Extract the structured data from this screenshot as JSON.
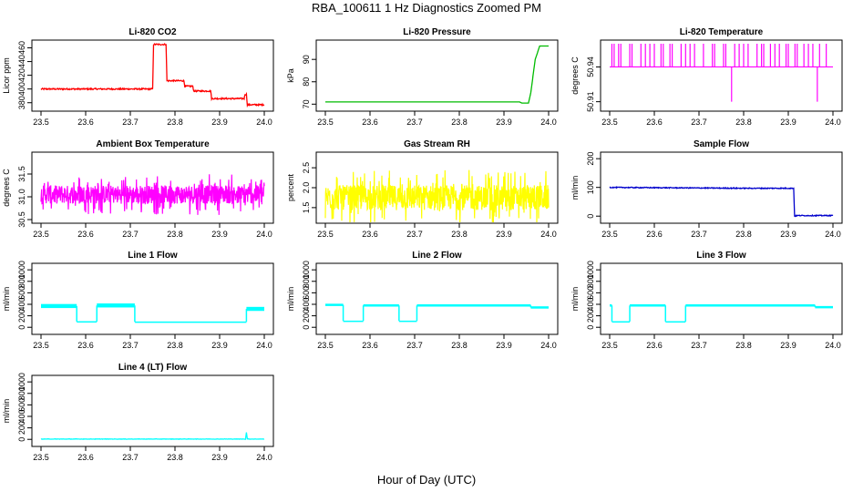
{
  "title": "RBA_100611  1 Hz Diagnostics Zoomed PM",
  "x_axis_label": "Hour of Day (UTC)",
  "chart_data": [
    {
      "type": "line",
      "title": "Li-820 CO2",
      "ylabel": "Licor ppm",
      "color": "#ff0000",
      "xlim": [
        23.5,
        24.0
      ],
      "ylim": [
        373,
        466
      ],
      "xticks": [
        "23.5",
        "23.6",
        "23.7",
        "23.8",
        "23.9",
        "24.0"
      ],
      "yticks": [
        380,
        400,
        420,
        440,
        460
      ],
      "x": [
        23.5,
        23.6,
        23.7,
        23.75,
        23.752,
        23.78,
        23.782,
        23.82,
        23.822,
        23.84,
        23.842,
        23.88,
        23.882,
        23.955,
        23.957,
        23.96,
        23.962,
        24.0
      ],
      "y": [
        400,
        400,
        400,
        400,
        465,
        465,
        412,
        412,
        404,
        404,
        397,
        397,
        386,
        386,
        392,
        392,
        377,
        377
      ],
      "noise": 1
    },
    {
      "type": "line",
      "title": "Li-820 Pressure",
      "ylabel": "kPa",
      "color": "#00bb00",
      "xlim": [
        23.5,
        24.0
      ],
      "ylim": [
        68.5,
        97
      ],
      "xticks": [
        "23.5",
        "23.6",
        "23.7",
        "23.8",
        "23.9",
        "24.0"
      ],
      "yticks": [
        70,
        80,
        90
      ],
      "x": [
        23.5,
        23.6,
        23.7,
        23.8,
        23.9,
        23.935,
        23.94,
        23.955,
        23.96,
        23.97,
        23.98,
        24.0
      ],
      "y": [
        71,
        71,
        71,
        71,
        71,
        71,
        70.5,
        70.5,
        75,
        90,
        96,
        96
      ],
      "noise": 0
    },
    {
      "type": "spikes",
      "title": "Li-820 Temperature",
      "ylabel": "degrees C",
      "color": "#ff00ff",
      "xlim": [
        23.5,
        24.0
      ],
      "ylim": [
        50.905,
        50.96
      ],
      "xticks": [
        "23.5",
        "23.6",
        "23.7",
        "23.8",
        "23.9",
        "24.0"
      ],
      "yticks": [
        "50.91",
        "50.94"
      ],
      "baseline": 50.94,
      "spike_top": 50.96,
      "spikes_up": [
        23.505,
        23.51,
        23.52,
        23.525,
        23.545,
        23.55,
        23.57,
        23.58,
        23.59,
        23.6,
        23.615,
        23.62,
        23.635,
        23.64,
        23.66,
        23.67,
        23.68,
        23.69,
        23.71,
        23.73,
        23.735,
        23.755,
        23.76,
        23.78,
        23.79,
        23.8,
        23.81,
        23.83,
        23.84,
        23.845,
        23.86,
        23.87,
        23.88,
        23.895,
        23.9,
        23.915,
        23.92,
        23.935,
        23.945,
        23.955,
        23.97,
        23.985
      ],
      "spikes_down": [
        {
          "x": 23.773,
          "y": 50.91
        },
        {
          "x": 23.965,
          "y": 50.91
        }
      ]
    },
    {
      "type": "noise",
      "title": "Ambient Box Temperature",
      "ylabel": "degrees C",
      "color": "#ff00ff",
      "xlim": [
        23.5,
        24.0
      ],
      "ylim": [
        30.5,
        31.9
      ],
      "xticks": [
        "23.5",
        "23.6",
        "23.7",
        "23.8",
        "23.9",
        "24.0"
      ],
      "yticks": [
        "30.5",
        "31.0",
        "31.5"
      ],
      "center": 31.05,
      "amplitude": 0.45
    },
    {
      "type": "noise",
      "title": "Gas Stream RH",
      "ylabel": "percent",
      "color": "#ffff00",
      "xlim": [
        23.5,
        24.0
      ],
      "ylim": [
        1.2,
        2.8
      ],
      "xticks": [
        "23.5",
        "23.6",
        "23.7",
        "23.8",
        "23.9",
        "24.0"
      ],
      "yticks": [
        "1.5",
        "2.0",
        "2.5"
      ],
      "center": 1.75,
      "amplitude": 0.7
    },
    {
      "type": "line",
      "title": "Sample Flow",
      "ylabel": "ml/min",
      "color": "#0000cc",
      "xlim": [
        23.5,
        24.0
      ],
      "ylim": [
        -12,
        210
      ],
      "xticks": [
        "23.5",
        "23.6",
        "23.7",
        "23.8",
        "23.9",
        "24.0"
      ],
      "yticks": [
        0,
        100,
        200
      ],
      "x": [
        23.5,
        23.6,
        23.7,
        23.8,
        23.9,
        23.912,
        23.914,
        23.92,
        24.0
      ],
      "y": [
        100,
        99,
        98,
        97,
        97,
        97,
        0,
        2,
        2
      ],
      "noise": 1.5
    },
    {
      "type": "band",
      "title": "Line 1 Flow",
      "ylabel": "ml/min",
      "color": "#00ffff",
      "xlim": [
        23.5,
        24.0
      ],
      "ylim": [
        -60,
        1050
      ],
      "xticks": [
        "23.5",
        "23.6",
        "23.7",
        "23.8",
        "23.9",
        "24.0"
      ],
      "yticks": [
        0,
        200,
        400,
        600,
        800,
        1000
      ],
      "segments": [
        [
          23.5,
          23.58,
          370
        ],
        [
          23.58,
          23.625,
          100
        ],
        [
          23.625,
          23.71,
          380
        ],
        [
          23.71,
          23.96,
          95
        ],
        [
          23.96,
          24.0,
          320
        ]
      ],
      "band": 70
    },
    {
      "type": "band",
      "title": "Line 2 Flow",
      "ylabel": "ml/min",
      "color": "#00ffff",
      "xlim": [
        23.5,
        24.0
      ],
      "ylim": [
        -60,
        1050
      ],
      "xticks": [
        "23.5",
        "23.6",
        "23.7",
        "23.8",
        "23.9",
        "24.0"
      ],
      "yticks": [
        0,
        200,
        400,
        600,
        800,
        1000
      ],
      "segments": [
        [
          23.5,
          23.54,
          390
        ],
        [
          23.54,
          23.585,
          110
        ],
        [
          23.585,
          23.665,
          380
        ],
        [
          23.665,
          23.705,
          110
        ],
        [
          23.705,
          23.96,
          380
        ],
        [
          23.96,
          24.0,
          345
        ]
      ],
      "band": 40
    },
    {
      "type": "band",
      "title": "Line 3 Flow",
      "ylabel": "ml/min",
      "color": "#00ffff",
      "xlim": [
        23.5,
        24.0
      ],
      "ylim": [
        -60,
        1050
      ],
      "xticks": [
        "23.5",
        "23.6",
        "23.7",
        "23.8",
        "23.9",
        "24.0"
      ],
      "yticks": [
        0,
        200,
        400,
        600,
        800,
        1000
      ],
      "segments": [
        [
          23.5,
          23.505,
          380
        ],
        [
          23.505,
          23.545,
          100
        ],
        [
          23.545,
          23.625,
          380
        ],
        [
          23.625,
          23.67,
          100
        ],
        [
          23.67,
          23.96,
          380
        ],
        [
          23.96,
          24.0,
          350
        ]
      ],
      "band": 40
    },
    {
      "type": "line",
      "title": "Line 4 (LT) Flow",
      "ylabel": "ml/min",
      "color": "#00ffff",
      "xlim": [
        23.5,
        24.0
      ],
      "ylim": [
        -60,
        1050
      ],
      "xticks": [
        "23.5",
        "23.6",
        "23.7",
        "23.8",
        "23.9",
        "24.0"
      ],
      "yticks": [
        0,
        200,
        400,
        600,
        800,
        1000
      ],
      "x": [
        23.5,
        23.6,
        23.7,
        23.8,
        23.9,
        23.958,
        23.96,
        23.962,
        23.965,
        24.0
      ],
      "y": [
        5,
        5,
        5,
        5,
        5,
        5,
        120,
        10,
        5,
        5
      ],
      "noise": 3
    }
  ]
}
